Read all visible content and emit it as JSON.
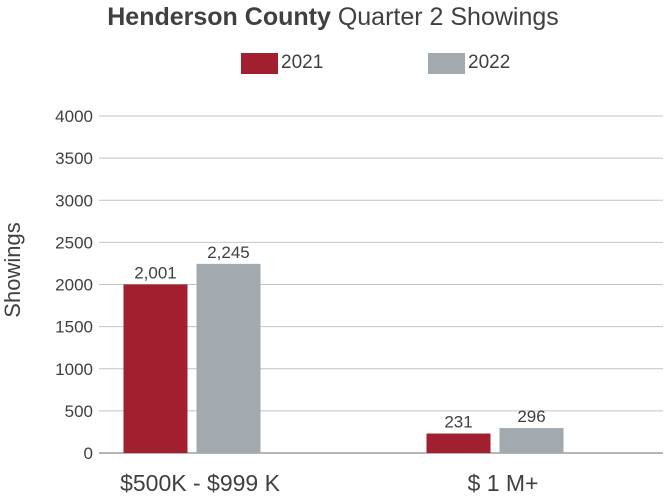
{
  "chart_data": {
    "type": "bar",
    "title": "Henderson County Quarter 2 Showings",
    "title_bold": "Henderson County",
    "title_rest": "Quarter 2 Showings",
    "xlabel": "",
    "ylabel": "Showings",
    "categories": [
      "$500K - $999 K",
      "$ 1 M+"
    ],
    "series": [
      {
        "name": "2021",
        "values": [
          2001,
          231
        ],
        "labels": [
          "2,001",
          "231"
        ],
        "color": "#A11F2E"
      },
      {
        "name": "2022",
        "values": [
          2245,
          296
        ],
        "labels": [
          "2,245",
          "296"
        ],
        "color": "#A2AAAF"
      }
    ],
    "ylim": [
      0,
      4000
    ],
    "yticks": [
      0,
      500,
      1000,
      1500,
      2000,
      2500,
      3000,
      3500,
      4000
    ],
    "grid": true,
    "legend": "top-center"
  }
}
